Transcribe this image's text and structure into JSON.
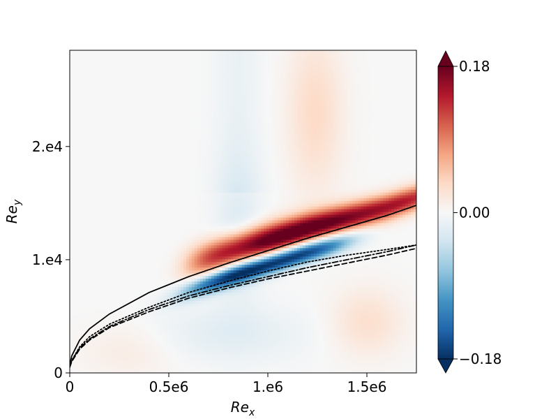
{
  "chart_data": {
    "type": "heatmap",
    "xlabel_base": "Re",
    "xlabel_sub": "x",
    "ylabel_base": "Re",
    "ylabel_sub": "y",
    "xlim": [
      0,
      1750000
    ],
    "ylim": [
      0,
      28500
    ],
    "xticks": [
      {
        "value": 0,
        "label": "0"
      },
      {
        "value": 500000,
        "label": "0.5e6"
      },
      {
        "value": 1000000,
        "label": "1.e6"
      },
      {
        "value": 1500000,
        "label": "1.5e6"
      }
    ],
    "yticks": [
      {
        "value": 0,
        "label": "0"
      },
      {
        "value": 10000,
        "label": "1.e4"
      },
      {
        "value": 20000,
        "label": "2.e4"
      }
    ],
    "colorbar": {
      "min": -0.18,
      "max": 0.18,
      "colormap": "RdBu_r",
      "extend": "both",
      "ticks": [
        {
          "value": 0.18,
          "label": "0.18"
        },
        {
          "value": 0.0,
          "label": "0.00"
        },
        {
          "value": -0.18,
          "label": "−0.18"
        }
      ]
    },
    "colors": {
      "low": "#053061",
      "mid": "#f7f7f7",
      "high": "#67001f",
      "line": "#000000"
    },
    "field_features": [
      {
        "name": "positive band",
        "sign": "+",
        "peak_value": 0.18,
        "along": "above solid curve, Re_x 0 to 1.6e6"
      },
      {
        "name": "negative band",
        "sign": "-",
        "peak_value": -0.18,
        "along": "below solid curve, Re_x 0.5e6 to 1.6e6"
      }
    ],
    "series": [
      {
        "style": "solid",
        "x": [
          0,
          10000,
          50000,
          100000,
          200000,
          400000,
          600000,
          800000,
          1000000,
          1200000,
          1400000,
          1600000,
          1750000
        ],
        "y": [
          700,
          1500,
          2900,
          3900,
          5200,
          7100,
          8500,
          9700,
          10800,
          11900,
          12900,
          13900,
          14800
        ]
      },
      {
        "style": "dotted",
        "x": [
          0,
          10000,
          50000,
          100000,
          200000,
          400000,
          600000,
          800000,
          1000000,
          1200000,
          1400000,
          1600000,
          1750000
        ],
        "y": [
          600,
          1100,
          2300,
          3200,
          4300,
          5800,
          7100,
          8100,
          9000,
          9800,
          10400,
          10900,
          11300
        ]
      },
      {
        "style": "dashdot",
        "x": [
          0,
          10000,
          50000,
          100000,
          200000,
          400000,
          600000,
          800000,
          1000000,
          1200000,
          1400000,
          1600000,
          1750000
        ],
        "y": [
          600,
          1100,
          2200,
          3000,
          4100,
          5600,
          6800,
          7700,
          8500,
          9300,
          10000,
          10700,
          11300
        ]
      },
      {
        "style": "dashed",
        "x": [
          0,
          10000,
          50000,
          100000,
          200000,
          400000,
          600000,
          800000,
          1000000,
          1200000,
          1400000,
          1600000,
          1750000
        ],
        "y": [
          500,
          1000,
          2100,
          2900,
          4000,
          5400,
          6600,
          7500,
          8300,
          9000,
          9700,
          10400,
          11000
        ]
      }
    ]
  }
}
